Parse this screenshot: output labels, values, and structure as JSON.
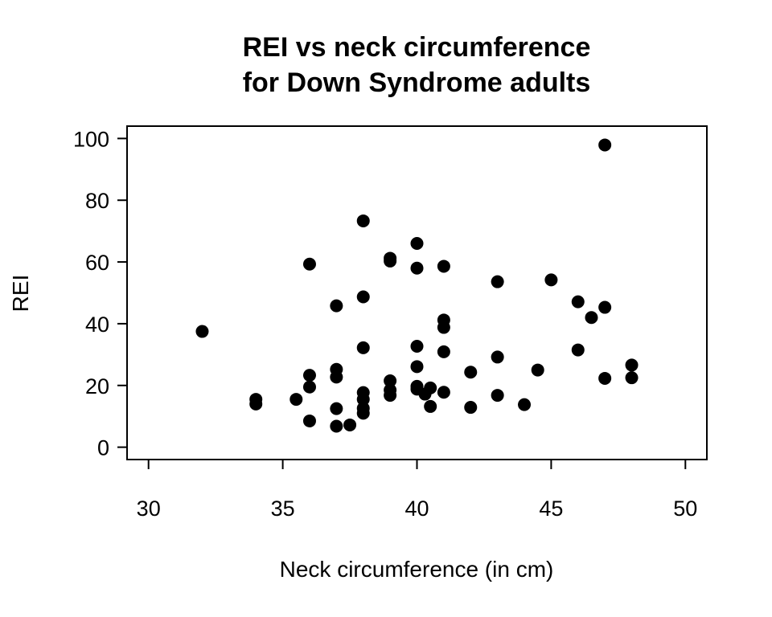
{
  "chart_data": {
    "type": "scatter",
    "title_lines": [
      "REI vs neck circumference",
      "for Down Syndrome adults"
    ],
    "xlabel": "Neck circumference (in cm)",
    "ylabel": "REI",
    "xlim": [
      29.2,
      50.8
    ],
    "ylim": [
      -4,
      104
    ],
    "xticks": [
      30,
      35,
      40,
      45,
      50
    ],
    "yticks": [
      0,
      20,
      40,
      60,
      80,
      100
    ],
    "grid": false,
    "points": [
      [
        32,
        37.5
      ],
      [
        34,
        15.5
      ],
      [
        34,
        14
      ],
      [
        35.5,
        15.5
      ],
      [
        36,
        59.3
      ],
      [
        36,
        23.3
      ],
      [
        36,
        19.5
      ],
      [
        36,
        8.5
      ],
      [
        37,
        45.8
      ],
      [
        37,
        25.2
      ],
      [
        37,
        22.7
      ],
      [
        37,
        12.5
      ],
      [
        37,
        6.8
      ],
      [
        37.5,
        7.2
      ],
      [
        38,
        73.3
      ],
      [
        38,
        48.7
      ],
      [
        38,
        32.2
      ],
      [
        38,
        17.7
      ],
      [
        38,
        15.5
      ],
      [
        38,
        12.6
      ],
      [
        38,
        11
      ],
      [
        39,
        61.2
      ],
      [
        39,
        60.3
      ],
      [
        39,
        21.5
      ],
      [
        39,
        18.5
      ],
      [
        39,
        16.8
      ],
      [
        40,
        66
      ],
      [
        40,
        58
      ],
      [
        40,
        32.7
      ],
      [
        40,
        26.1
      ],
      [
        40,
        19.7
      ],
      [
        40,
        18.8
      ],
      [
        40.3,
        17.2
      ],
      [
        40.5,
        19.2
      ],
      [
        40.5,
        13.2
      ],
      [
        41,
        58.6
      ],
      [
        41,
        41.2
      ],
      [
        41,
        38.8
      ],
      [
        41,
        30.9
      ],
      [
        41,
        17.8
      ],
      [
        42,
        24.3
      ],
      [
        42,
        12.9
      ],
      [
        43,
        53.6
      ],
      [
        43,
        29.2
      ],
      [
        43,
        16.8
      ],
      [
        44,
        13.8
      ],
      [
        44.5,
        25
      ],
      [
        45,
        54.2
      ],
      [
        46,
        47.1
      ],
      [
        46,
        31.5
      ],
      [
        46.5,
        42
      ],
      [
        47,
        97.9
      ],
      [
        47,
        45.3
      ],
      [
        47,
        22.3
      ],
      [
        48,
        26.6
      ],
      [
        48,
        22.5
      ]
    ]
  }
}
